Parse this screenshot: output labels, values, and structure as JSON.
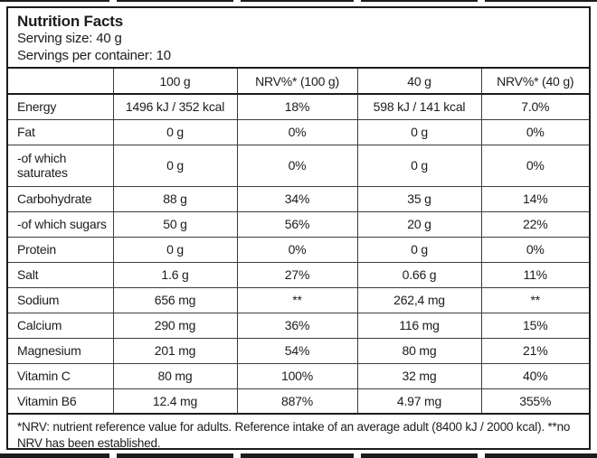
{
  "label": {
    "title": "Nutrition Facts",
    "serving_size": "Serving size: 40 g",
    "servings_per_container": "Servings per container: 10"
  },
  "table": {
    "columns": [
      "",
      "100 g",
      "NRV%* (100 g)",
      "40 g",
      "NRV%* (40 g)"
    ],
    "rows": [
      {
        "label": "Energy",
        "values": [
          "1496 kJ / 352 kcal",
          "18%",
          "598 kJ / 141 kcal",
          "7.0%"
        ]
      },
      {
        "label": "Fat",
        "values": [
          "0 g",
          "0%",
          "0 g",
          "0%"
        ]
      },
      {
        "label": "-of which saturates",
        "values": [
          "0 g",
          "0%",
          "0 g",
          "0%"
        ]
      },
      {
        "label": "Carbohydrate",
        "values": [
          "88 g",
          "34%",
          "35 g",
          "14%"
        ]
      },
      {
        "label": "-of which sugars",
        "values": [
          "50 g",
          "56%",
          "20 g",
          "22%"
        ]
      },
      {
        "label": "Protein",
        "values": [
          "0 g",
          "0%",
          "0 g",
          "0%"
        ]
      },
      {
        "label": "Salt",
        "values": [
          "1.6 g",
          "27%",
          "0.66 g",
          "11%"
        ]
      },
      {
        "label": "Sodium",
        "values": [
          "656 mg",
          "**",
          "262,4 mg",
          "**"
        ]
      },
      {
        "label": "Calcium",
        "values": [
          "290 mg",
          "36%",
          "116 mg",
          "15%"
        ]
      },
      {
        "label": "Magnesium",
        "values": [
          "201 mg",
          "54%",
          "80 mg",
          "21%"
        ]
      },
      {
        "label": "Vitamin C",
        "values": [
          "80 mg",
          "100%",
          "32 mg",
          "40%"
        ]
      },
      {
        "label": "Vitamin B6",
        "values": [
          "12.4 mg",
          "887%",
          "4.97 mg",
          "355%"
        ]
      }
    ],
    "footnote": "*NRV: nutrient reference value for adults. Reference intake of an average adult (8400 kJ / 2000 kcal). **no NRV has been established."
  },
  "colors": {
    "ink": "#1c1c1c",
    "grid_line": "#3c3c3c",
    "background": "#ffffff"
  }
}
